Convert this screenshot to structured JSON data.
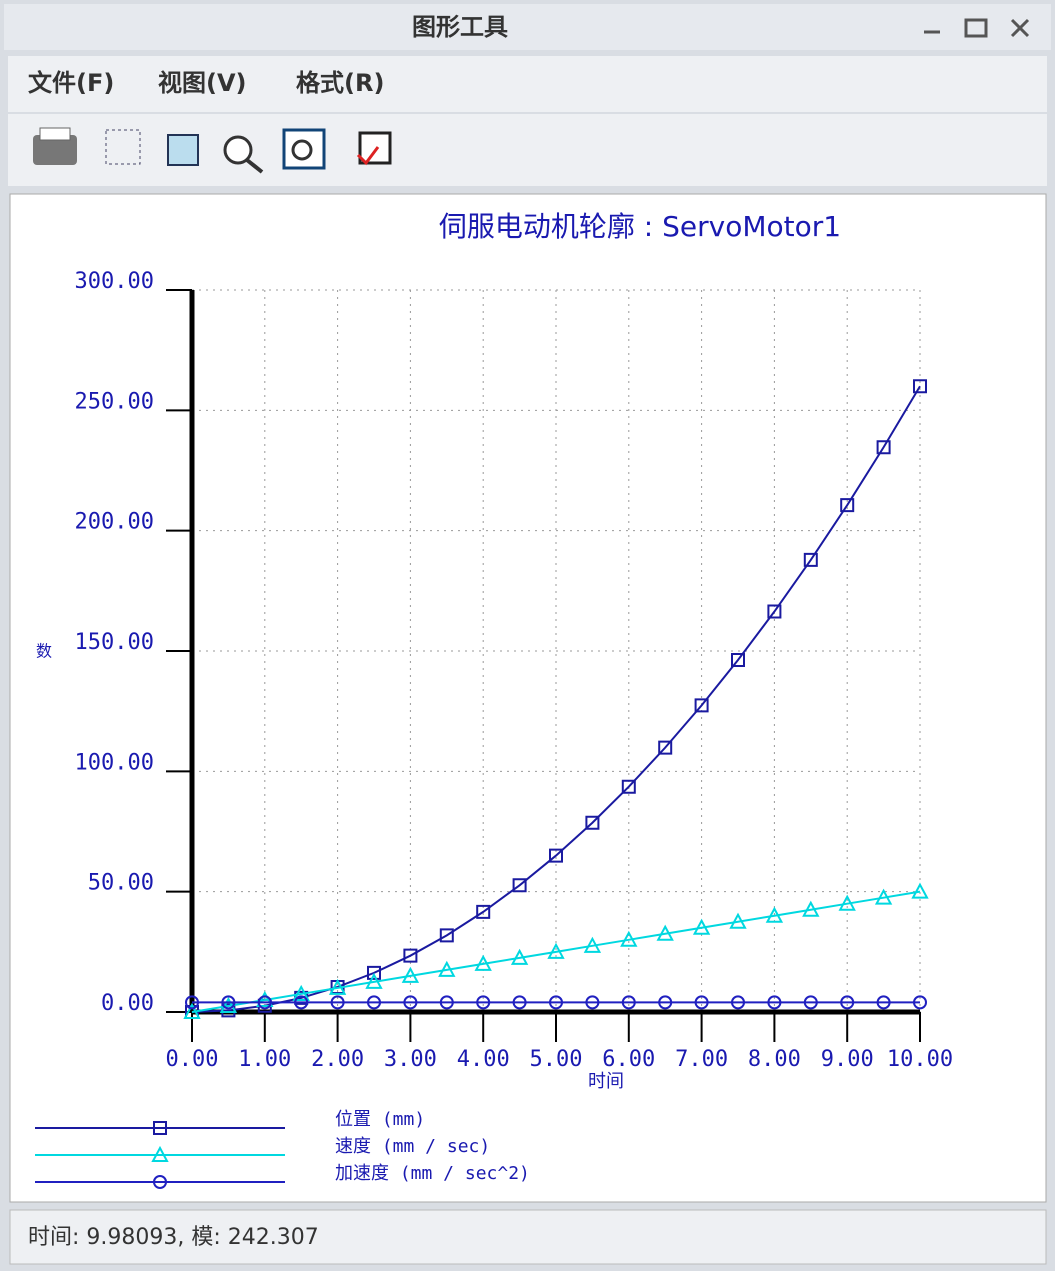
{
  "window": {
    "title": "图形工具"
  },
  "menu": [
    "文件(F)",
    "视图(V)",
    "格式(R)"
  ],
  "status": "时间: 9.98093, 模: 242.307",
  "chart_data": {
    "type": "line",
    "title": "伺服电动机轮廓 : ServoMotor1",
    "x_label": "时间",
    "y_label": "数",
    "x": [
      0,
      0.5,
      1,
      1.5,
      2,
      2.5,
      3,
      3.5,
      4,
      4.5,
      5,
      5.5,
      6,
      6.5,
      7,
      7.5,
      8,
      8.5,
      9,
      9.5,
      10
    ],
    "series": [
      {
        "name": "位置 (mm)",
        "color": "#1a1aa0",
        "marker": "square",
        "values": [
          0,
          0.65,
          2.6,
          5.85,
          10.4,
          16.25,
          23.4,
          31.85,
          41.6,
          52.65,
          65,
          78.65,
          93.6,
          109.85,
          127.4,
          146.25,
          166.4,
          187.85,
          210.6,
          234.65,
          260
        ]
      },
      {
        "name": "速度 (mm / sec)",
        "color": "#00d8e0",
        "marker": "triangle",
        "values": [
          0,
          2.5,
          5,
          7.5,
          10,
          12.5,
          15,
          17.5,
          20,
          22.5,
          25,
          27.5,
          30,
          32.5,
          35,
          37.5,
          40,
          42.5,
          45,
          47.5,
          50
        ]
      },
      {
        "name": "加速度 (mm / sec^2)",
        "color": "#2020c0",
        "marker": "circle",
        "values": [
          4,
          4,
          4,
          4,
          4,
          4,
          4,
          4,
          4,
          4,
          4,
          4,
          4,
          4,
          4,
          4,
          4,
          4,
          4,
          4,
          4
        ]
      }
    ],
    "xlim": [
      0,
      10
    ],
    "ylim": [
      0,
      300
    ],
    "xticks": [
      {
        "value": 0,
        "label": "0.00"
      },
      {
        "value": 1,
        "label": "1.00"
      },
      {
        "value": 2,
        "label": "2.00"
      },
      {
        "value": 3,
        "label": "3.00"
      },
      {
        "value": 4,
        "label": "4.00"
      },
      {
        "value": 5,
        "label": "5.00"
      },
      {
        "value": 6,
        "label": "6.00"
      },
      {
        "value": 7,
        "label": "7.00"
      },
      {
        "value": 8,
        "label": "8.00"
      },
      {
        "value": 9,
        "label": "9.00"
      },
      {
        "value": 10,
        "label": "10.00"
      }
    ],
    "yticks": [
      {
        "value": 0,
        "label": "0.00"
      },
      {
        "value": 50,
        "label": "50.00"
      },
      {
        "value": 100,
        "label": "100.00"
      },
      {
        "value": 150,
        "label": "150.00"
      },
      {
        "value": 200,
        "label": "200.00"
      },
      {
        "value": 250,
        "label": "250.00"
      },
      {
        "value": 300,
        "label": "300.00"
      }
    ],
    "grid": true
  }
}
